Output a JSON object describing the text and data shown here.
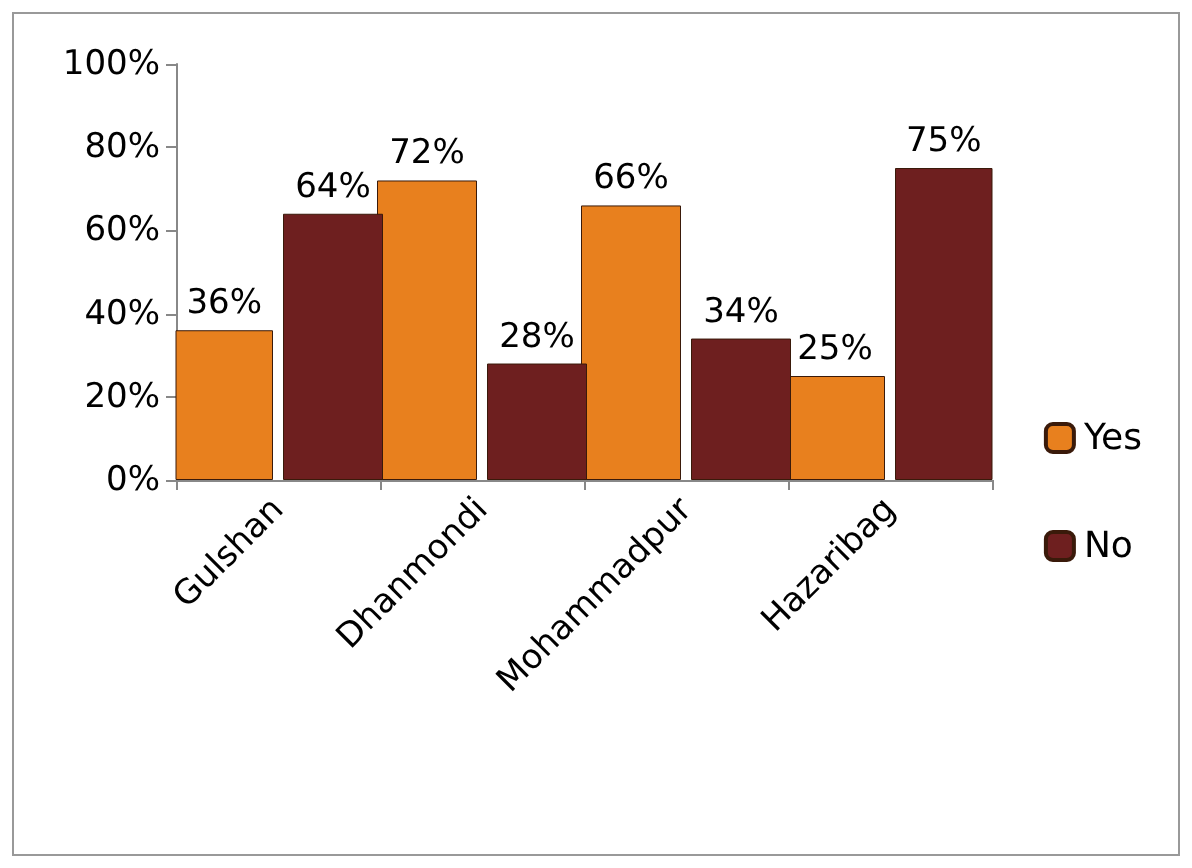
{
  "chart_data": {
    "type": "bar",
    "categories": [
      "Gulshan",
      "Dhanmondi",
      "Mohammadpur",
      "Hazaribag"
    ],
    "series": [
      {
        "name": "Yes",
        "color": "#e8801e",
        "values": [
          36,
          72,
          66,
          25
        ],
        "value_labels": [
          "36%",
          "72%",
          "66%",
          "25%"
        ]
      },
      {
        "name": "No",
        "color": "#6e1f1f",
        "values": [
          64,
          28,
          34,
          75
        ],
        "value_labels": [
          "64%",
          "28%",
          "34%",
          "75%"
        ]
      }
    ],
    "ylim": [
      0,
      100
    ],
    "yticks": [
      {
        "value": 0,
        "label": "0%"
      },
      {
        "value": 20,
        "label": "20%"
      },
      {
        "value": 40,
        "label": "40%"
      },
      {
        "value": 60,
        "label": "60%"
      },
      {
        "value": 80,
        "label": "80%"
      },
      {
        "value": 100,
        "label": "100%"
      }
    ],
    "grid": false,
    "legend": "right"
  }
}
